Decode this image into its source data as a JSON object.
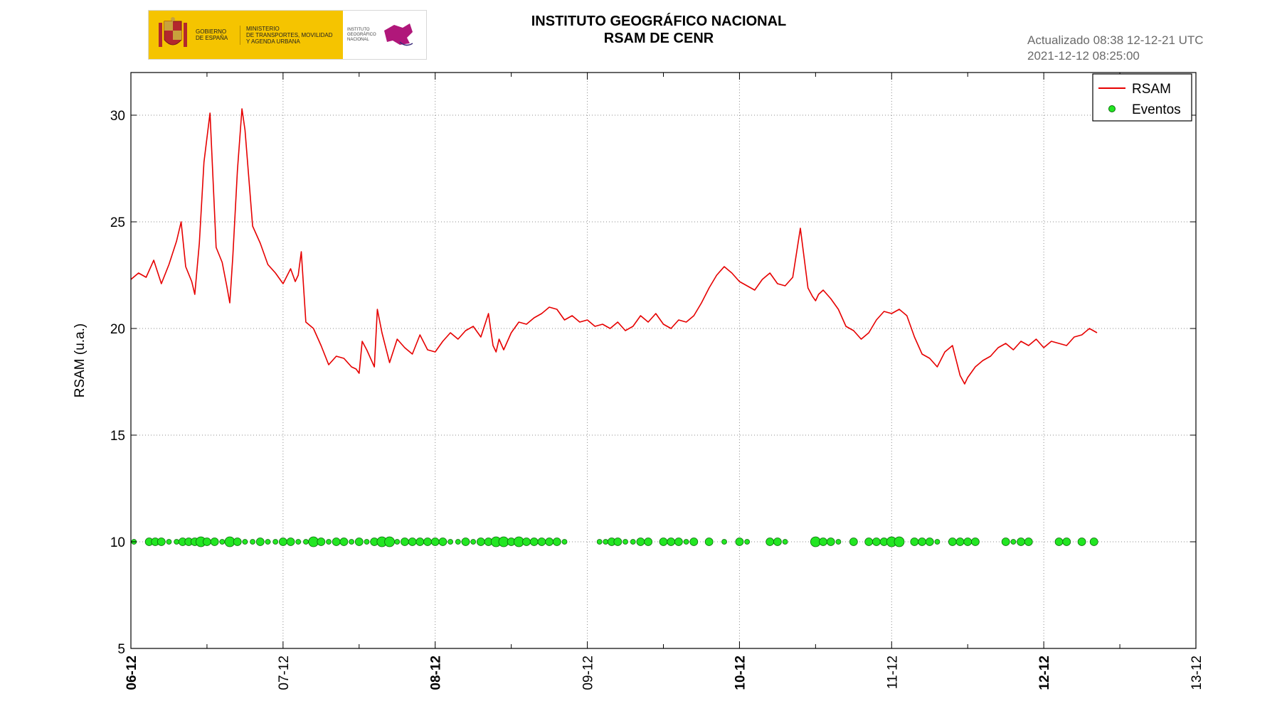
{
  "header": {
    "logo": {
      "gov_line1": "GOBIERNO",
      "gov_line2": "DE ESPAÑA",
      "ministry_line1": "MINISTERIO",
      "ministry_line2": "DE TRANSPORTES, MOVILIDAD",
      "ministry_line3": "Y AGENDA URBANA",
      "institute_line1": "INSTITUTO",
      "institute_line2": "GEOGRÁFICO",
      "institute_line3": "NACIONAL"
    },
    "title_line1": "INSTITUTO GEOGRÁFICO NACIONAL",
    "title_line2": "RSAM DE CENR",
    "updated_line1": "Actualizado 08:38 12-12-21 UTC",
    "updated_line2": "2021-12-12 08:25:00"
  },
  "colors": {
    "rsam": "#e60000",
    "eventos": "#22e622",
    "eventos_edge": "#0b6e0b",
    "grid": "#8c8c8c",
    "updated_text": "#6a6a6a",
    "gov_yellow": "#f5c400"
  },
  "chart_data": {
    "type": "line",
    "ylabel": "RSAM (u.a.)",
    "ylim": [
      5,
      32
    ],
    "yticks": [
      5,
      10,
      15,
      20,
      25,
      30
    ],
    "x_tick_labels": [
      "06-12",
      "07-12",
      "08-12",
      "09-12",
      "10-12",
      "11-12",
      "12-12",
      "13-12"
    ],
    "x_tick_bold": [
      true,
      false,
      true,
      false,
      true,
      false,
      true,
      false
    ],
    "xlim_days": [
      0,
      7
    ],
    "grid": true,
    "legend": {
      "placement": "top-right",
      "entries": [
        "RSAM",
        "Eventos"
      ]
    },
    "series": [
      {
        "name": "RSAM",
        "x_days": [
          0.0,
          0.05,
          0.1,
          0.15,
          0.2,
          0.25,
          0.3,
          0.33,
          0.36,
          0.4,
          0.42,
          0.45,
          0.48,
          0.52,
          0.56,
          0.6,
          0.63,
          0.65,
          0.67,
          0.7,
          0.73,
          0.75,
          0.8,
          0.85,
          0.9,
          0.95,
          1.0,
          1.05,
          1.08,
          1.1,
          1.12,
          1.15,
          1.2,
          1.25,
          1.3,
          1.35,
          1.4,
          1.45,
          1.48,
          1.5,
          1.52,
          1.55,
          1.6,
          1.62,
          1.65,
          1.7,
          1.75,
          1.8,
          1.85,
          1.9,
          1.95,
          2.0,
          2.05,
          2.1,
          2.15,
          2.2,
          2.25,
          2.3,
          2.35,
          2.38,
          2.4,
          2.42,
          2.45,
          2.5,
          2.55,
          2.6,
          2.65,
          2.7,
          2.75,
          2.8,
          2.85,
          2.9,
          2.95,
          3.0,
          3.05,
          3.1,
          3.15,
          3.2,
          3.25,
          3.3,
          3.35,
          3.4,
          3.45,
          3.5,
          3.55,
          3.6,
          3.65,
          3.7,
          3.75,
          3.8,
          3.85,
          3.9,
          3.95,
          4.0,
          4.05,
          4.1,
          4.15,
          4.2,
          4.25,
          4.3,
          4.35,
          4.4,
          4.45,
          4.48,
          4.5,
          4.52,
          4.55,
          4.6,
          4.65,
          4.7,
          4.75,
          4.8,
          4.85,
          4.9,
          4.95,
          5.0,
          5.05,
          5.1,
          5.15,
          5.2,
          5.25,
          5.3,
          5.35,
          5.4,
          5.45,
          5.48,
          5.5,
          5.55,
          5.6,
          5.65,
          5.7,
          5.75,
          5.8,
          5.85,
          5.9,
          5.95,
          6.0,
          6.05,
          6.1,
          6.15,
          6.2,
          6.25,
          6.3,
          6.35
        ],
        "values": [
          22.3,
          22.6,
          22.4,
          23.2,
          22.1,
          23.0,
          24.1,
          25.0,
          22.9,
          22.2,
          21.6,
          24.0,
          27.8,
          30.1,
          23.8,
          23.1,
          22.0,
          21.2,
          23.4,
          27.4,
          30.3,
          29.3,
          24.8,
          24.0,
          23.0,
          22.6,
          22.1,
          22.8,
          22.2,
          22.5,
          23.6,
          20.3,
          20.0,
          19.2,
          18.3,
          18.7,
          18.6,
          18.2,
          18.1,
          17.9,
          19.4,
          19.0,
          18.2,
          20.9,
          19.8,
          18.4,
          19.5,
          19.1,
          18.8,
          19.7,
          19.0,
          18.9,
          19.4,
          19.8,
          19.5,
          19.9,
          20.1,
          19.6,
          20.7,
          19.2,
          18.9,
          19.5,
          19.0,
          19.8,
          20.3,
          20.2,
          20.5,
          20.7,
          21.0,
          20.9,
          20.4,
          20.6,
          20.3,
          20.4,
          20.1,
          20.2,
          20.0,
          20.3,
          19.9,
          20.1,
          20.6,
          20.3,
          20.7,
          20.2,
          20.0,
          20.4,
          20.3,
          20.6,
          21.2,
          21.9,
          22.5,
          22.9,
          22.6,
          22.2,
          22.0,
          21.8,
          22.3,
          22.6,
          22.1,
          22.0,
          22.4,
          24.7,
          21.9,
          21.5,
          21.3,
          21.6,
          21.8,
          21.4,
          20.9,
          20.1,
          19.9,
          19.5,
          19.8,
          20.4,
          20.8,
          20.7,
          20.9,
          20.6,
          19.6,
          18.8,
          18.6,
          18.2,
          18.9,
          19.2,
          17.8,
          17.4,
          17.7,
          18.2,
          18.5,
          18.7,
          19.1,
          19.3,
          19.0,
          19.4,
          19.2,
          19.5,
          19.1,
          19.4,
          19.3,
          19.2,
          19.6,
          19.7,
          20.0,
          19.8
        ]
      },
      {
        "name": "Eventos",
        "y": 10,
        "x_days": [
          0.02,
          0.12,
          0.16,
          0.2,
          0.25,
          0.3,
          0.34,
          0.38,
          0.42,
          0.46,
          0.5,
          0.55,
          0.6,
          0.65,
          0.7,
          0.75,
          0.8,
          0.85,
          0.9,
          0.95,
          1.0,
          1.05,
          1.1,
          1.15,
          1.2,
          1.25,
          1.3,
          1.35,
          1.4,
          1.45,
          1.5,
          1.55,
          1.6,
          1.65,
          1.7,
          1.75,
          1.8,
          1.85,
          1.9,
          1.95,
          2.0,
          2.05,
          2.1,
          2.15,
          2.2,
          2.25,
          2.3,
          2.35,
          2.4,
          2.45,
          2.5,
          2.55,
          2.6,
          2.65,
          2.7,
          2.75,
          2.8,
          2.85,
          3.08,
          3.12,
          3.16,
          3.2,
          3.25,
          3.3,
          3.35,
          3.4,
          3.5,
          3.55,
          3.6,
          3.65,
          3.7,
          3.8,
          3.9,
          4.0,
          4.05,
          4.2,
          4.25,
          4.3,
          4.5,
          4.55,
          4.6,
          4.65,
          4.75,
          4.85,
          4.9,
          4.95,
          5.0,
          5.05,
          5.15,
          5.2,
          5.25,
          5.3,
          5.4,
          5.45,
          5.5,
          5.55,
          5.75,
          5.8,
          5.85,
          5.9,
          6.1,
          6.15,
          6.25,
          6.33
        ],
        "sizes": [
          1,
          2,
          2,
          2,
          1,
          1,
          2,
          2,
          2,
          3,
          2,
          2,
          1,
          3,
          2,
          1,
          1,
          2,
          1,
          1,
          2,
          2,
          1,
          1,
          3,
          2,
          1,
          2,
          2,
          1,
          2,
          1,
          2,
          3,
          3,
          1,
          2,
          2,
          2,
          2,
          2,
          2,
          1,
          1,
          2,
          1,
          2,
          2,
          3,
          3,
          2,
          3,
          2,
          2,
          2,
          2,
          2,
          1,
          1,
          1,
          2,
          2,
          1,
          1,
          2,
          2,
          2,
          2,
          2,
          1,
          2,
          2,
          1,
          2,
          1,
          2,
          2,
          1,
          3,
          2,
          2,
          1,
          2,
          2,
          2,
          2,
          3,
          3,
          2,
          2,
          2,
          1,
          2,
          2,
          2,
          2,
          2,
          1,
          2,
          2,
          2,
          2,
          2,
          2
        ]
      }
    ]
  }
}
